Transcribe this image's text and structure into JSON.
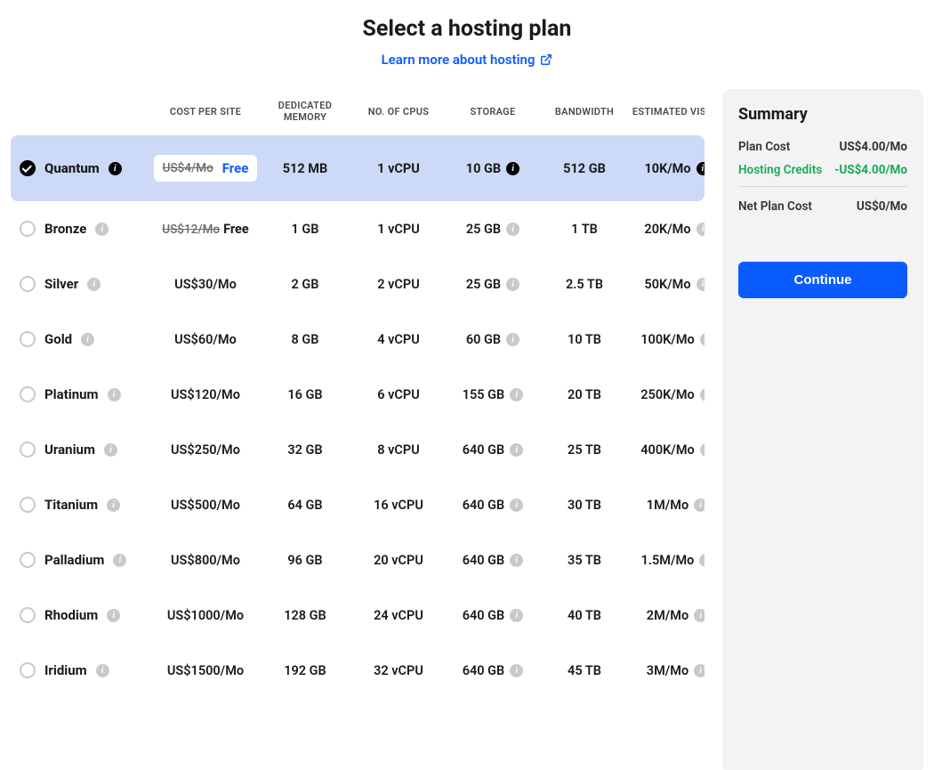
{
  "header": {
    "title": "Select a hosting plan",
    "learn_more_label": "Learn more about hosting"
  },
  "columns": {
    "cost": "COST PER SITE",
    "memory": "DEDICATED MEMORY",
    "cpus": "NO. OF CPUS",
    "storage": "STORAGE",
    "bandwidth": "BANDWIDTH",
    "visits": "ESTIMATED VISITS"
  },
  "plans": [
    {
      "id": "quantum",
      "name": "Quantum",
      "selected": true,
      "name_info": "dark",
      "cost_struck": "US$4/Mo",
      "cost_free": "Free",
      "cost": null,
      "memory": "512 MB",
      "cpu": "1 vCPU",
      "storage": "10 GB",
      "storage_info": "dark",
      "bandwidth": "512 GB",
      "visits": "10K/Mo",
      "visits_info": "dark"
    },
    {
      "id": "bronze",
      "name": "Bronze",
      "selected": false,
      "name_info": "light",
      "cost_struck": "US$12/Mo",
      "cost_free": "Free",
      "cost": null,
      "memory": "1 GB",
      "cpu": "1 vCPU",
      "storage": "25 GB",
      "storage_info": "light",
      "bandwidth": "1 TB",
      "visits": "20K/Mo",
      "visits_info": "light"
    },
    {
      "id": "silver",
      "name": "Silver",
      "selected": false,
      "name_info": "light",
      "cost_struck": null,
      "cost_free": null,
      "cost": "US$30/Mo",
      "memory": "2 GB",
      "cpu": "2 vCPU",
      "storage": "25 GB",
      "storage_info": "light",
      "bandwidth": "2.5 TB",
      "visits": "50K/Mo",
      "visits_info": "light"
    },
    {
      "id": "gold",
      "name": "Gold",
      "selected": false,
      "name_info": "light",
      "cost_struck": null,
      "cost_free": null,
      "cost": "US$60/Mo",
      "memory": "8 GB",
      "cpu": "4 vCPU",
      "storage": "60 GB",
      "storage_info": "light",
      "bandwidth": "10 TB",
      "visits": "100K/Mo",
      "visits_info": "light"
    },
    {
      "id": "platinum",
      "name": "Platinum",
      "selected": false,
      "name_info": "light",
      "cost_struck": null,
      "cost_free": null,
      "cost": "US$120/Mo",
      "memory": "16 GB",
      "cpu": "6 vCPU",
      "storage": "155 GB",
      "storage_info": "light",
      "bandwidth": "20 TB",
      "visits": "250K/Mo",
      "visits_info": "light"
    },
    {
      "id": "uranium",
      "name": "Uranium",
      "selected": false,
      "name_info": "light",
      "cost_struck": null,
      "cost_free": null,
      "cost": "US$250/Mo",
      "memory": "32 GB",
      "cpu": "8 vCPU",
      "storage": "640 GB",
      "storage_info": "light",
      "bandwidth": "25 TB",
      "visits": "400K/Mo",
      "visits_info": "light"
    },
    {
      "id": "titanium",
      "name": "Titanium",
      "selected": false,
      "name_info": "light",
      "cost_struck": null,
      "cost_free": null,
      "cost": "US$500/Mo",
      "memory": "64 GB",
      "cpu": "16 vCPU",
      "storage": "640 GB",
      "storage_info": "light",
      "bandwidth": "30 TB",
      "visits": "1M/Mo",
      "visits_info": "light"
    },
    {
      "id": "palladium",
      "name": "Palladium",
      "selected": false,
      "name_info": "light",
      "cost_struck": null,
      "cost_free": null,
      "cost": "US$800/Mo",
      "memory": "96 GB",
      "cpu": "20 vCPU",
      "storage": "640 GB",
      "storage_info": "light",
      "bandwidth": "35 TB",
      "visits": "1.5M/Mo",
      "visits_info": "light"
    },
    {
      "id": "rhodium",
      "name": "Rhodium",
      "selected": false,
      "name_info": "light",
      "cost_struck": null,
      "cost_free": null,
      "cost": "US$1000/Mo",
      "memory": "128 GB",
      "cpu": "24 vCPU",
      "storage": "640 GB",
      "storage_info": "light",
      "bandwidth": "40 TB",
      "visits": "2M/Mo",
      "visits_info": "light"
    },
    {
      "id": "iridium",
      "name": "Iridium",
      "selected": false,
      "name_info": "light",
      "cost_struck": null,
      "cost_free": null,
      "cost": "US$1500/Mo",
      "memory": "192 GB",
      "cpu": "32 vCPU",
      "storage": "640 GB",
      "storage_info": "light",
      "bandwidth": "45 TB",
      "visits": "3M/Mo",
      "visits_info": "light"
    }
  ],
  "summary": {
    "title": "Summary",
    "plan_cost_label": "Plan Cost",
    "plan_cost_value": "US$4.00/Mo",
    "credits_label": "Hosting Credits",
    "credits_value": "-US$4.00/Mo",
    "net_label": "Net Plan Cost",
    "net_value": "US$0/Mo",
    "continue_label": "Continue"
  },
  "colors": {
    "accent": "#0b5cff",
    "selected_row_bg": "#ccd9f7",
    "summary_bg": "#f3f3f3",
    "credit_green": "#18a957",
    "info_light": "#c9c9c9",
    "info_dark": "#000000"
  }
}
